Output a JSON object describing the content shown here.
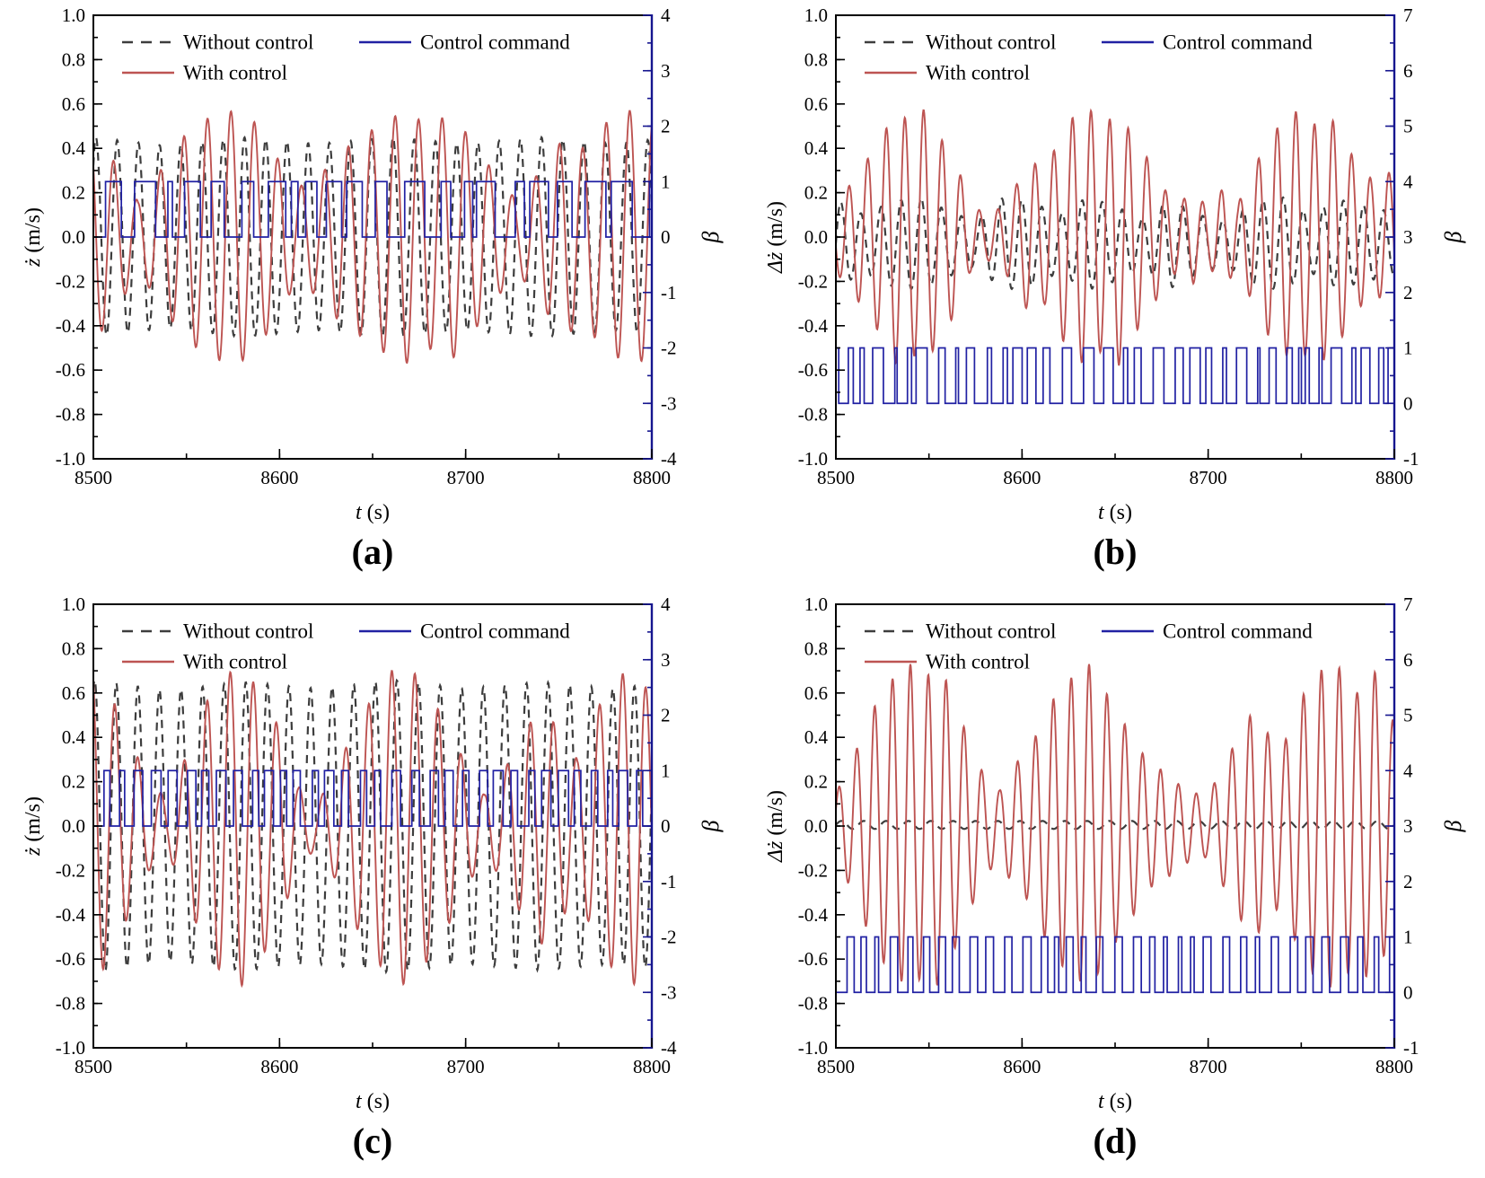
{
  "figure": {
    "colors": {
      "without_control": "#3d3d3d",
      "with_control": "#bd5452",
      "command": "#2121a3",
      "right_axis": "#16168f",
      "frame": "#000000",
      "text": "#000000"
    },
    "legend": [
      {
        "key": "without_control",
        "label": "Without control",
        "style": "dashed"
      },
      {
        "key": "with_control",
        "label": "With control",
        "style": "solid"
      },
      {
        "key": "command",
        "label": "Control command",
        "style": "solid"
      }
    ],
    "xlabel": "t (s)",
    "x": {
      "min": 8500,
      "max": 8800,
      "ticks": [
        "8500",
        "8600",
        "8700",
        "8800"
      ],
      "minor_step": 50
    }
  },
  "chart_data": [
    {
      "id": "a",
      "caption": "(a)",
      "type": "line",
      "ylabel_left": "ż (m/s)",
      "ylabel_right": "β",
      "yleft": {
        "min": -1,
        "max": 1,
        "minor_step": 0.1
      },
      "yright": {
        "min": -4,
        "max": 4,
        "minor_step": 0.5
      },
      "yleft_ticks": [
        "1.0",
        "0.8",
        "0.6",
        "0.4",
        "0.2",
        "0.0",
        "-0.2",
        "-0.4",
        "-0.6",
        "-0.8",
        "-1.0"
      ],
      "yright_ticks": [
        "4",
        "3",
        "2",
        "1",
        "0",
        "-1",
        "-2",
        "-3",
        "-4"
      ],
      "series": {
        "without_control": {
          "carrier_period": 11.4,
          "phase": 0.8,
          "offset": 0,
          "envelope": [
            [
              8500,
              0.45
            ],
            [
              8540,
              0.41
            ],
            [
              8580,
              0.45
            ],
            [
              8620,
              0.42
            ],
            [
              8660,
              0.45
            ],
            [
              8700,
              0.42
            ],
            [
              8740,
              0.45
            ],
            [
              8780,
              0.42
            ],
            [
              8800,
              0.44
            ]
          ]
        },
        "with_control": {
          "carrier_period": 12.6,
          "phase": 2.4,
          "offset": 0,
          "envelope": [
            [
              8500,
              0.48
            ],
            [
              8512,
              0.33
            ],
            [
              8524,
              0.16
            ],
            [
              8536,
              0.3
            ],
            [
              8548,
              0.45
            ],
            [
              8560,
              0.53
            ],
            [
              8572,
              0.57
            ],
            [
              8584,
              0.55
            ],
            [
              8596,
              0.4
            ],
            [
              8608,
              0.22
            ],
            [
              8620,
              0.26
            ],
            [
              8632,
              0.38
            ],
            [
              8644,
              0.45
            ],
            [
              8656,
              0.52
            ],
            [
              8668,
              0.57
            ],
            [
              8680,
              0.5
            ],
            [
              8692,
              0.56
            ],
            [
              8704,
              0.43
            ],
            [
              8716,
              0.28
            ],
            [
              8728,
              0.16
            ],
            [
              8740,
              0.3
            ],
            [
              8752,
              0.44
            ],
            [
              8764,
              0.4
            ],
            [
              8776,
              0.52
            ],
            [
              8788,
              0.57
            ],
            [
              8800,
              0.55
            ]
          ]
        },
        "command": {
          "axis": "right",
          "low": 0,
          "high": 1,
          "dwell_on": [
            1.5,
            13
          ],
          "dwell_off": [
            1.5,
            11
          ],
          "seed": 11
        }
      }
    },
    {
      "id": "b",
      "caption": "(b)",
      "type": "line",
      "ylabel_left": "Δż (m/s)",
      "ylabel_right": "β",
      "yleft": {
        "min": -1,
        "max": 1,
        "minor_step": 0.1
      },
      "yright": {
        "min": -1,
        "max": 7,
        "minor_step": 0.5
      },
      "yleft_ticks": [
        "1.0",
        "0.8",
        "0.6",
        "0.4",
        "0.2",
        "0.0",
        "-0.2",
        "-0.4",
        "-0.6",
        "-0.8",
        "-1.0"
      ],
      "yright_ticks": [
        "7",
        "6",
        "5",
        "4",
        "3",
        "2",
        "1",
        "0",
        "-1"
      ],
      "series": {
        "without_control": {
          "carrier_period": 10.8,
          "phase": 0.0,
          "offset": -0.03,
          "envelope": [
            [
              8500,
              0.2
            ],
            [
              8515,
              0.13
            ],
            [
              8530,
              0.19
            ],
            [
              8545,
              0.21
            ],
            [
              8560,
              0.15
            ],
            [
              8575,
              0.1
            ],
            [
              8590,
              0.21
            ],
            [
              8605,
              0.19
            ],
            [
              8620,
              0.13
            ],
            [
              8635,
              0.21
            ],
            [
              8650,
              0.17
            ],
            [
              8665,
              0.11
            ],
            [
              8680,
              0.2
            ],
            [
              8695,
              0.13
            ],
            [
              8710,
              0.1
            ],
            [
              8725,
              0.19
            ],
            [
              8740,
              0.21
            ],
            [
              8755,
              0.13
            ],
            [
              8770,
              0.2
            ],
            [
              8785,
              0.17
            ],
            [
              8800,
              0.14
            ]
          ]
        },
        "with_control": {
          "carrier_period": 10.0,
          "phase": 3.4,
          "offset": 0,
          "envelope": [
            [
              8500,
              0.16
            ],
            [
              8508,
              0.24
            ],
            [
              8516,
              0.34
            ],
            [
              8524,
              0.44
            ],
            [
              8532,
              0.57
            ],
            [
              8540,
              0.52
            ],
            [
              8548,
              0.58
            ],
            [
              8556,
              0.45
            ],
            [
              8564,
              0.35
            ],
            [
              8572,
              0.16
            ],
            [
              8580,
              0.1
            ],
            [
              8588,
              0.13
            ],
            [
              8596,
              0.22
            ],
            [
              8604,
              0.35
            ],
            [
              8612,
              0.3
            ],
            [
              8620,
              0.44
            ],
            [
              8628,
              0.55
            ],
            [
              8636,
              0.58
            ],
            [
              8644,
              0.5
            ],
            [
              8652,
              0.58
            ],
            [
              8660,
              0.44
            ],
            [
              8668,
              0.35
            ],
            [
              8676,
              0.22
            ],
            [
              8684,
              0.15
            ],
            [
              8692,
              0.21
            ],
            [
              8700,
              0.13
            ],
            [
              8708,
              0.22
            ],
            [
              8716,
              0.15
            ],
            [
              8724,
              0.3
            ],
            [
              8732,
              0.44
            ],
            [
              8740,
              0.52
            ],
            [
              8748,
              0.57
            ],
            [
              8756,
              0.5
            ],
            [
              8764,
              0.57
            ],
            [
              8772,
              0.45
            ],
            [
              8780,
              0.33
            ],
            [
              8788,
              0.26
            ],
            [
              8800,
              0.3
            ]
          ]
        },
        "command": {
          "axis": "right",
          "low": 0,
          "high": 1,
          "dwell_on": [
            1.2,
            6
          ],
          "dwell_off": [
            2,
            7
          ],
          "seed": 23
        }
      }
    },
    {
      "id": "c",
      "caption": "(c)",
      "type": "line",
      "ylabel_left": "ż (m/s)",
      "ylabel_right": "β",
      "yleft": {
        "min": -1,
        "max": 1,
        "minor_step": 0.1
      },
      "yright": {
        "min": -4,
        "max": 4,
        "minor_step": 0.5
      },
      "yleft_ticks": [
        "1.0",
        "0.8",
        "0.6",
        "0.4",
        "0.2",
        "0.0",
        "-0.2",
        "-0.4",
        "-0.6",
        "-0.8",
        "-1.0"
      ],
      "yright_ticks": [
        "4",
        "3",
        "2",
        "1",
        "0",
        "-1",
        "-2",
        "-3",
        "-4"
      ],
      "series": {
        "without_control": {
          "carrier_period": 11.6,
          "phase": 1.2,
          "offset": 0,
          "envelope": [
            [
              8500,
              0.66
            ],
            [
              8540,
              0.61
            ],
            [
              8580,
              0.65
            ],
            [
              8620,
              0.62
            ],
            [
              8660,
              0.66
            ],
            [
              8700,
              0.62
            ],
            [
              8740,
              0.65
            ],
            [
              8780,
              0.62
            ],
            [
              8800,
              0.64
            ]
          ]
        },
        "with_control": {
          "carrier_period": 12.4,
          "phase": 2.0,
          "offset": 0,
          "envelope": [
            [
              8500,
              0.72
            ],
            [
              8510,
              0.58
            ],
            [
              8520,
              0.38
            ],
            [
              8530,
              0.2
            ],
            [
              8540,
              0.12
            ],
            [
              8550,
              0.32
            ],
            [
              8560,
              0.55
            ],
            [
              8570,
              0.68
            ],
            [
              8580,
              0.72
            ],
            [
              8590,
              0.6
            ],
            [
              8600,
              0.44
            ],
            [
              8610,
              0.18
            ],
            [
              8620,
              0.1
            ],
            [
              8630,
              0.24
            ],
            [
              8640,
              0.44
            ],
            [
              8650,
              0.58
            ],
            [
              8660,
              0.7
            ],
            [
              8670,
              0.72
            ],
            [
              8680,
              0.6
            ],
            [
              8690,
              0.46
            ],
            [
              8700,
              0.28
            ],
            [
              8710,
              0.14
            ],
            [
              8720,
              0.24
            ],
            [
              8730,
              0.4
            ],
            [
              8740,
              0.54
            ],
            [
              8750,
              0.44
            ],
            [
              8760,
              0.3
            ],
            [
              8770,
              0.52
            ],
            [
              8780,
              0.66
            ],
            [
              8790,
              0.72
            ],
            [
              8800,
              0.58
            ]
          ]
        },
        "command": {
          "axis": "right",
          "low": 0,
          "high": 1,
          "dwell_on": [
            2.5,
            5.5
          ],
          "dwell_off": [
            3,
            6.5
          ],
          "seed": 5
        }
      }
    },
    {
      "id": "d",
      "caption": "(d)",
      "type": "line",
      "ylabel_left": "Δż (m/s)",
      "ylabel_right": "β",
      "yleft": {
        "min": -1,
        "max": 1,
        "minor_step": 0.1
      },
      "yright": {
        "min": -1,
        "max": 7,
        "minor_step": 0.5
      },
      "yleft_ticks": [
        "1.0",
        "0.8",
        "0.6",
        "0.4",
        "0.2",
        "0.0",
        "-0.2",
        "-0.4",
        "-0.6",
        "-0.8",
        "-1.0"
      ],
      "yright_ticks": [
        "7",
        "6",
        "5",
        "4",
        "3",
        "2",
        "1",
        "0",
        "-1"
      ],
      "series": {
        "without_control": {
          "carrier_period": 12.0,
          "phase": 0.0,
          "offset": 0.005,
          "envelope": [
            [
              8500,
              0.018
            ],
            [
              8800,
              0.018
            ]
          ]
        },
        "with_control": {
          "carrier_period": 9.6,
          "phase": 0.5,
          "offset": 0,
          "envelope": [
            [
              8500,
              0.15
            ],
            [
              8508,
              0.28
            ],
            [
              8516,
              0.45
            ],
            [
              8524,
              0.6
            ],
            [
              8532,
              0.68
            ],
            [
              8540,
              0.73
            ],
            [
              8548,
              0.67
            ],
            [
              8556,
              0.73
            ],
            [
              8564,
              0.55
            ],
            [
              8572,
              0.38
            ],
            [
              8580,
              0.22
            ],
            [
              8588,
              0.16
            ],
            [
              8596,
              0.28
            ],
            [
              8604,
              0.34
            ],
            [
              8612,
              0.5
            ],
            [
              8620,
              0.62
            ],
            [
              8628,
              0.68
            ],
            [
              8636,
              0.73
            ],
            [
              8644,
              0.62
            ],
            [
              8652,
              0.5
            ],
            [
              8660,
              0.4
            ],
            [
              8668,
              0.28
            ],
            [
              8676,
              0.25
            ],
            [
              8684,
              0.19
            ],
            [
              8692,
              0.15
            ],
            [
              8700,
              0.14
            ],
            [
              8708,
              0.27
            ],
            [
              8716,
              0.4
            ],
            [
              8724,
              0.52
            ],
            [
              8732,
              0.42
            ],
            [
              8740,
              0.35
            ],
            [
              8748,
              0.55
            ],
            [
              8756,
              0.66
            ],
            [
              8764,
              0.73
            ],
            [
              8772,
              0.71
            ],
            [
              8780,
              0.6
            ],
            [
              8788,
              0.73
            ],
            [
              8800,
              0.46
            ]
          ]
        },
        "command": {
          "axis": "right",
          "low": 0,
          "high": 1,
          "dwell_on": [
            1.8,
            4.5
          ],
          "dwell_off": [
            3.5,
            6.5
          ],
          "seed": 31
        }
      }
    }
  ]
}
